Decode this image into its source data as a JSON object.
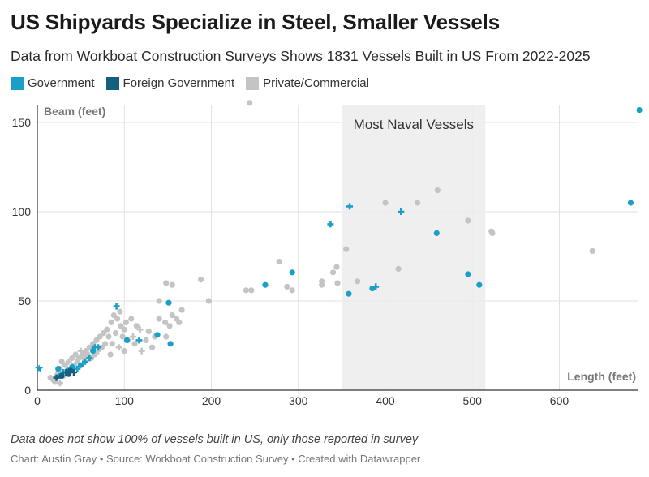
{
  "title": "US Shipyards Specialize in Steel, Smaller Vessels",
  "subtitle": "Data from Workboat Construction Surveys Shows 1831 Vessels Built in US From 2022-2025",
  "legend": [
    {
      "label": "Government",
      "color": "#1aa0c8"
    },
    {
      "label": "Foreign Government",
      "color": "#13607e"
    },
    {
      "label": "Private/Commercial",
      "color": "#c4c4c4"
    }
  ],
  "note": "Data does not show 100% of vessels built in US, only those reported in survey",
  "credit": "Chart: Austin Gray • Source: Workboat Construction Survey • Created with Datawrapper",
  "chart_data": {
    "type": "scatter",
    "title": "US Shipyards Specialize in Steel, Smaller Vessels",
    "xlabel": "Length (feet)",
    "ylabel": "Beam (feet)",
    "xlim": [
      0,
      690
    ],
    "ylim": [
      0,
      160
    ],
    "x_ticks": [
      0,
      100,
      200,
      300,
      400,
      500,
      600
    ],
    "y_ticks": [
      0,
      50,
      100,
      150
    ],
    "grid": true,
    "legend_position": "top-left",
    "annotation": {
      "label": "Most Naval Vessels",
      "x_range": [
        350,
        515
      ]
    },
    "series": [
      {
        "name": "Private/Commercial",
        "color": "#c4c4c4",
        "points": [
          {
            "x": 244,
            "y": 161,
            "shape": "circle"
          },
          {
            "x": 400,
            "y": 105,
            "shape": "circle"
          },
          {
            "x": 437,
            "y": 105,
            "shape": "circle"
          },
          {
            "x": 460,
            "y": 112,
            "shape": "circle"
          },
          {
            "x": 495,
            "y": 95,
            "shape": "circle"
          },
          {
            "x": 522,
            "y": 89,
            "shape": "circle"
          },
          {
            "x": 523,
            "y": 88,
            "shape": "circle"
          },
          {
            "x": 638,
            "y": 78,
            "shape": "circle"
          },
          {
            "x": 355,
            "y": 79,
            "shape": "circle"
          },
          {
            "x": 278,
            "y": 72,
            "shape": "circle"
          },
          {
            "x": 344,
            "y": 69,
            "shape": "circle"
          },
          {
            "x": 340,
            "y": 66,
            "shape": "circle"
          },
          {
            "x": 415,
            "y": 68,
            "shape": "circle"
          },
          {
            "x": 368,
            "y": 61,
            "shape": "circle"
          },
          {
            "x": 327,
            "y": 61,
            "shape": "circle"
          },
          {
            "x": 327,
            "y": 59,
            "shape": "circle"
          },
          {
            "x": 345,
            "y": 60,
            "shape": "circle"
          },
          {
            "x": 287,
            "y": 58,
            "shape": "circle"
          },
          {
            "x": 293,
            "y": 56,
            "shape": "circle"
          },
          {
            "x": 240,
            "y": 56,
            "shape": "circle"
          },
          {
            "x": 246,
            "y": 56,
            "shape": "circle"
          },
          {
            "x": 188,
            "y": 62,
            "shape": "circle"
          },
          {
            "x": 148,
            "y": 60,
            "shape": "circle"
          },
          {
            "x": 155,
            "y": 59,
            "shape": "circle"
          },
          {
            "x": 197,
            "y": 50,
            "shape": "circle"
          },
          {
            "x": 140,
            "y": 50,
            "shape": "circle"
          },
          {
            "x": 166,
            "y": 45,
            "shape": "circle"
          },
          {
            "x": 155,
            "y": 42,
            "shape": "circle"
          },
          {
            "x": 160,
            "y": 40,
            "shape": "circle"
          },
          {
            "x": 163,
            "y": 38,
            "shape": "circle"
          },
          {
            "x": 152,
            "y": 36,
            "shape": "circle"
          },
          {
            "x": 147,
            "y": 38,
            "shape": "circle"
          },
          {
            "x": 140,
            "y": 40,
            "shape": "circle"
          },
          {
            "x": 128,
            "y": 33,
            "shape": "circle"
          },
          {
            "x": 135,
            "y": 30,
            "shape": "circle"
          },
          {
            "x": 148,
            "y": 30,
            "shape": "circle"
          },
          {
            "x": 118,
            "y": 34,
            "shape": "cross"
          },
          {
            "x": 110,
            "y": 30,
            "shape": "cross"
          },
          {
            "x": 100,
            "y": 34,
            "shape": "circle"
          },
          {
            "x": 96,
            "y": 36,
            "shape": "circle"
          },
          {
            "x": 92,
            "y": 40,
            "shape": "circle"
          },
          {
            "x": 88,
            "y": 42,
            "shape": "circle"
          },
          {
            "x": 95,
            "y": 44,
            "shape": "circle"
          },
          {
            "x": 85,
            "y": 38,
            "shape": "circle"
          },
          {
            "x": 80,
            "y": 34,
            "shape": "circle"
          },
          {
            "x": 76,
            "y": 32,
            "shape": "circle"
          },
          {
            "x": 72,
            "y": 30,
            "shape": "circle"
          },
          {
            "x": 68,
            "y": 28,
            "shape": "circle"
          },
          {
            "x": 82,
            "y": 30,
            "shape": "circle"
          },
          {
            "x": 90,
            "y": 32,
            "shape": "circle"
          },
          {
            "x": 98,
            "y": 30,
            "shape": "circle"
          },
          {
            "x": 104,
            "y": 28,
            "shape": "circle"
          },
          {
            "x": 86,
            "y": 26,
            "shape": "circle"
          },
          {
            "x": 78,
            "y": 26,
            "shape": "circle"
          },
          {
            "x": 74,
            "y": 24,
            "shape": "circle"
          },
          {
            "x": 70,
            "y": 22,
            "shape": "cross"
          },
          {
            "x": 94,
            "y": 24,
            "shape": "cross"
          },
          {
            "x": 100,
            "y": 22,
            "shape": "circle"
          },
          {
            "x": 112,
            "y": 26,
            "shape": "circle"
          },
          {
            "x": 125,
            "y": 28,
            "shape": "circle"
          },
          {
            "x": 64,
            "y": 26,
            "shape": "circle"
          },
          {
            "x": 60,
            "y": 24,
            "shape": "circle"
          },
          {
            "x": 56,
            "y": 22,
            "shape": "circle"
          },
          {
            "x": 52,
            "y": 20,
            "shape": "circle"
          },
          {
            "x": 48,
            "y": 18,
            "shape": "circle"
          },
          {
            "x": 50,
            "y": 22,
            "shape": "cross"
          },
          {
            "x": 44,
            "y": 20,
            "shape": "circle"
          },
          {
            "x": 40,
            "y": 18,
            "shape": "circle"
          },
          {
            "x": 36,
            "y": 16,
            "shape": "cross"
          },
          {
            "x": 32,
            "y": 14,
            "shape": "circle"
          },
          {
            "x": 28,
            "y": 16,
            "shape": "circle"
          },
          {
            "x": 26,
            "y": 12,
            "shape": "circle"
          },
          {
            "x": 24,
            "y": 10,
            "shape": "circle"
          },
          {
            "x": 22,
            "y": 8,
            "shape": "circle"
          },
          {
            "x": 18,
            "y": 6,
            "shape": "circle"
          },
          {
            "x": 15,
            "y": 7,
            "shape": "circle"
          },
          {
            "x": 20,
            "y": 5,
            "shape": "circle"
          },
          {
            "x": 26,
            "y": 4,
            "shape": "cross"
          },
          {
            "x": 30,
            "y": 8,
            "shape": "circle"
          },
          {
            "x": 34,
            "y": 10,
            "shape": "circle"
          },
          {
            "x": 42,
            "y": 14,
            "shape": "circle"
          },
          {
            "x": 46,
            "y": 16,
            "shape": "circle"
          },
          {
            "x": 54,
            "y": 18,
            "shape": "circle"
          },
          {
            "x": 58,
            "y": 20,
            "shape": "circle"
          },
          {
            "x": 62,
            "y": 18,
            "shape": "circle"
          },
          {
            "x": 66,
            "y": 20,
            "shape": "circle"
          },
          {
            "x": 84,
            "y": 20,
            "shape": "circle"
          },
          {
            "x": 38,
            "y": 12,
            "shape": "circle"
          },
          {
            "x": 120,
            "y": 22,
            "shape": "cross"
          },
          {
            "x": 132,
            "y": 24,
            "shape": "circle"
          },
          {
            "x": 108,
            "y": 40,
            "shape": "circle"
          },
          {
            "x": 114,
            "y": 36,
            "shape": "circle"
          },
          {
            "x": 102,
            "y": 38,
            "shape": "circle"
          }
        ]
      },
      {
        "name": "Government",
        "color": "#1aa0c8",
        "points": [
          {
            "x": 692,
            "y": 157,
            "shape": "circle"
          },
          {
            "x": 682,
            "y": 105,
            "shape": "circle"
          },
          {
            "x": 359,
            "y": 103,
            "shape": "cross"
          },
          {
            "x": 418,
            "y": 100,
            "shape": "cross"
          },
          {
            "x": 337,
            "y": 93,
            "shape": "cross"
          },
          {
            "x": 459,
            "y": 88,
            "shape": "circle"
          },
          {
            "x": 495,
            "y": 65,
            "shape": "circle"
          },
          {
            "x": 508,
            "y": 59,
            "shape": "circle"
          },
          {
            "x": 293,
            "y": 66,
            "shape": "circle"
          },
          {
            "x": 262,
            "y": 59,
            "shape": "circle"
          },
          {
            "x": 358,
            "y": 54,
            "shape": "circle"
          },
          {
            "x": 385,
            "y": 57,
            "shape": "circle"
          },
          {
            "x": 389,
            "y": 58,
            "shape": "cross"
          },
          {
            "x": 151,
            "y": 49,
            "shape": "circle"
          },
          {
            "x": 91,
            "y": 47,
            "shape": "cross"
          },
          {
            "x": 138,
            "y": 31,
            "shape": "circle"
          },
          {
            "x": 153,
            "y": 26,
            "shape": "circle"
          },
          {
            "x": 117,
            "y": 28,
            "shape": "cross"
          },
          {
            "x": 103,
            "y": 28,
            "shape": "circle"
          },
          {
            "x": 70,
            "y": 24,
            "shape": "cross"
          },
          {
            "x": 64,
            "y": 22,
            "shape": "circle"
          },
          {
            "x": 66,
            "y": 24,
            "shape": "cross"
          },
          {
            "x": 60,
            "y": 18,
            "shape": "cross"
          },
          {
            "x": 55,
            "y": 16,
            "shape": "cross"
          },
          {
            "x": 50,
            "y": 14,
            "shape": "circle"
          },
          {
            "x": 46,
            "y": 12,
            "shape": "cross"
          },
          {
            "x": 40,
            "y": 13,
            "shape": "circle"
          },
          {
            "x": 35,
            "y": 11,
            "shape": "circle"
          },
          {
            "x": 30,
            "y": 10,
            "shape": "cross"
          },
          {
            "x": 26,
            "y": 8,
            "shape": "circle"
          },
          {
            "x": 24,
            "y": 12,
            "shape": "circle"
          },
          {
            "x": 2,
            "y": 12,
            "shape": "star"
          }
        ]
      },
      {
        "name": "Foreign Government",
        "color": "#13607e",
        "points": [
          {
            "x": 22,
            "y": 7,
            "shape": "cross"
          },
          {
            "x": 28,
            "y": 8,
            "shape": "circle"
          },
          {
            "x": 33,
            "y": 10,
            "shape": "cross"
          },
          {
            "x": 38,
            "y": 11,
            "shape": "circle"
          },
          {
            "x": 42,
            "y": 10,
            "shape": "cross"
          },
          {
            "x": 36,
            "y": 9,
            "shape": "circle"
          }
        ]
      }
    ]
  }
}
